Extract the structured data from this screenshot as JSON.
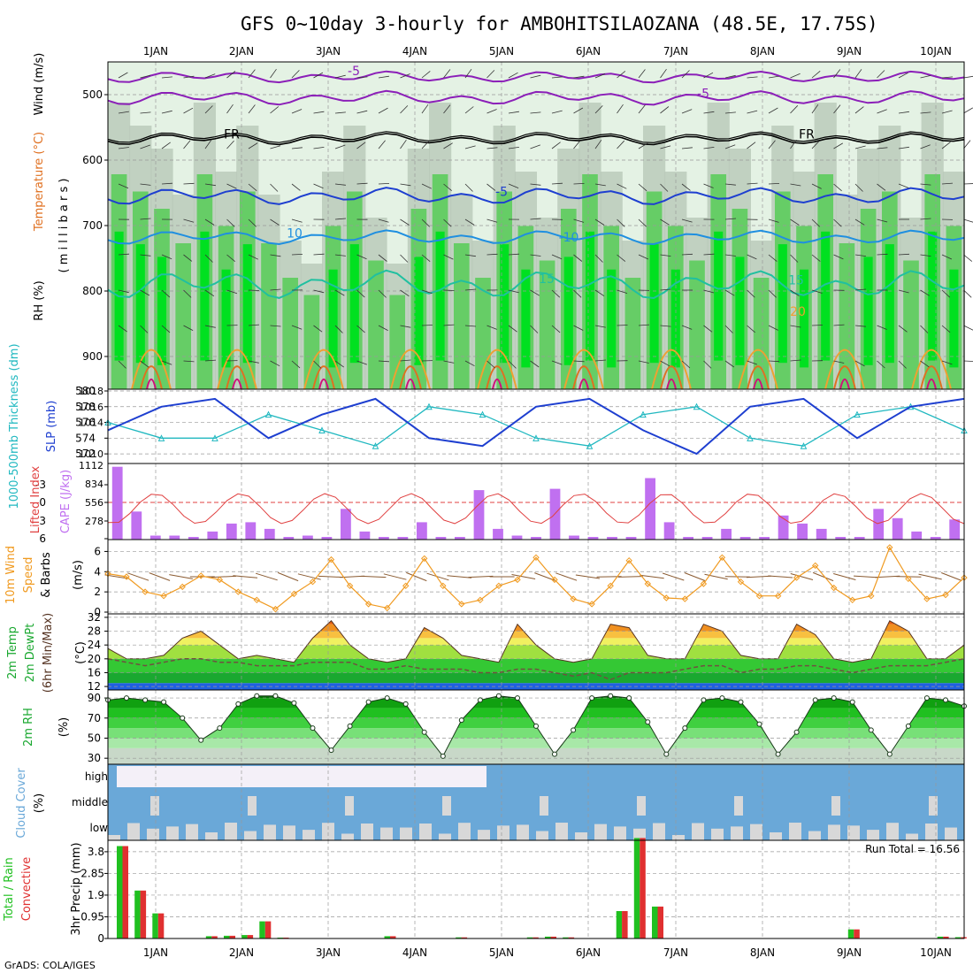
{
  "title": "GFS 0~10day 3-hourly for AMBOHITSILAOZANA (48.5E, 17.75S)",
  "footer": "GrADS: COLA/IGES",
  "colors": {
    "purple": "#8b1fb8",
    "blue_dark": "#1e3fd0",
    "blue_mid": "#1f8fe0",
    "teal": "#20c0a0",
    "orange": "#f0a030",
    "orange_dark": "#e07020",
    "magenta": "#d0107a",
    "green_bright": "#00e020",
    "green_mid": "#5ccc5c",
    "grey_green": "#b8c8b8",
    "pale_green": "#e4f2e4",
    "slp": "#1e3fd0",
    "thickness": "#20b8c0",
    "cape": "#c070f0",
    "lifted": "#e04040",
    "wind": "#f09a20",
    "barb": "#8a5a30",
    "dewpt": "#705040",
    "cloud": "#6aa8d8",
    "cloud_clear": "#f4f0f8",
    "precip_total": "#20c020",
    "precip_conv": "#e03030"
  },
  "chart_data": {
    "type": "line",
    "x_dates": [
      "1JAN",
      "2JAN",
      "3JAN",
      "4JAN",
      "5JAN",
      "6JAN",
      "7JAN",
      "8JAN",
      "9JAN",
      "10JAN"
    ],
    "panels": {
      "upper_air": {
        "ylabel_parts": [
          "RH (%)",
          "Temperature (°C)",
          "Wind (m/s)"
        ],
        "ylabel_units": "( m i l l i b a r s )",
        "yticks": [
          500,
          600,
          700,
          800,
          900
        ],
        "ylim": [
          450,
          950
        ],
        "contour_labels": [
          "-5",
          "-5",
          "FR",
          "FR",
          "-5",
          "10",
          "-10",
          "15",
          "15",
          "20"
        ],
        "levels": {
          "minus5": 505,
          "freezing": 568,
          "t5": 655,
          "t10": 718,
          "t15": 790
        }
      },
      "slp_thickness": {
        "ylabel_left": "1000-500mb Thickness (dm)",
        "ylabel_right": "SLP (mb)",
        "left_ticks": [
          572,
          574,
          576,
          578,
          580
        ],
        "right_ticks": [
          1010,
          1014,
          1016,
          1018
        ],
        "slp": [
          1013,
          1016,
          1017,
          1012,
          1015,
          1017,
          1012,
          1011,
          1016,
          1017,
          1013,
          1010,
          1016,
          1017,
          1012,
          1016,
          1017
        ],
        "thickness": [
          576,
          574,
          574,
          577,
          575,
          573,
          578,
          577,
          574,
          573,
          577,
          578,
          574,
          573,
          577,
          578,
          575
        ]
      },
      "cape_li": {
        "ylabel_left": "Lifted Index",
        "ylabel_right": "CAPE (J/kg)",
        "left_ticks": [
          "-3",
          "0",
          "3",
          "6"
        ],
        "right_ticks": [
          "1112",
          "834",
          "556",
          "278"
        ],
        "cape": [
          1090,
          420,
          60,
          60,
          40,
          120,
          240,
          260,
          160,
          40,
          60,
          40,
          460,
          120,
          40,
          40,
          260,
          40,
          40,
          740,
          160,
          60,
          40,
          760,
          60,
          40,
          40,
          40,
          920,
          260,
          40,
          40,
          160,
          40,
          40,
          360,
          240,
          160,
          40,
          40,
          460,
          320,
          120,
          40,
          300
        ]
      },
      "wind10m": {
        "ylabel": [
          "10m Wind",
          "Speed",
          "& Barbs"
        ],
        "units": "(m/s)",
        "yticks": [
          0,
          2,
          4,
          6
        ],
        "ylim": [
          0,
          7
        ],
        "speed": [
          3.8,
          3.5,
          2.0,
          1.6,
          2.5,
          3.6,
          3.2,
          2.0,
          1.2,
          0.3,
          1.8,
          3.0,
          5.2,
          2.6,
          0.8,
          0.4,
          2.6,
          5.3,
          2.6,
          0.8,
          1.2,
          2.6,
          3.2,
          5.4,
          3.2,
          1.3,
          0.8,
          2.6,
          5.1,
          2.8,
          1.4,
          1.3,
          2.8,
          5.4,
          3.0,
          1.6,
          1.6,
          3.4,
          4.6,
          2.4,
          1.2,
          1.6,
          6.4,
          3.3,
          1.3,
          1.7,
          3.4
        ]
      },
      "temp2m": {
        "ylabel": [
          "2m Temp",
          "2m DewPt",
          "(6hr Min/Max)"
        ],
        "units": "(°C)",
        "yticks": [
          12,
          16,
          20,
          24,
          28,
          32
        ],
        "ylim": [
          11,
          33
        ],
        "temp": [
          23,
          20,
          20,
          21,
          26,
          28,
          24,
          20,
          21,
          20,
          19,
          26,
          31,
          24,
          20,
          19,
          20,
          29,
          26,
          21,
          20,
          19,
          30,
          24,
          20,
          19,
          20,
          30,
          29,
          21,
          20,
          20,
          30,
          28,
          21,
          20,
          20,
          30,
          27,
          20,
          19,
          20,
          31,
          28,
          20,
          20,
          24
        ],
        "dewpt": [
          20,
          19,
          18,
          19,
          20,
          20,
          19,
          19,
          18,
          18,
          18,
          19,
          19,
          19,
          17,
          17,
          18,
          17,
          17,
          17,
          16,
          16,
          17,
          17,
          16,
          15,
          16,
          14,
          16,
          16,
          16,
          17,
          18,
          18,
          16,
          17,
          17,
          18,
          18,
          17,
          16,
          17,
          18,
          18,
          18,
          19,
          20
        ]
      },
      "rh2m": {
        "ylabel": "2m RH",
        "units": "(%)",
        "yticks": [
          30,
          50,
          70,
          90
        ],
        "ylim": [
          24,
          98
        ],
        "rh": [
          88,
          90,
          88,
          86,
          70,
          48,
          60,
          84,
          92,
          92,
          85,
          60,
          38,
          62,
          86,
          90,
          84,
          56,
          32,
          68,
          88,
          92,
          90,
          62,
          34,
          58,
          90,
          92,
          90,
          66,
          34,
          60,
          88,
          90,
          86,
          64,
          34,
          56,
          88,
          90,
          86,
          58,
          34,
          62,
          90,
          88,
          82
        ]
      },
      "cloud": {
        "ylabel": [
          "Cloud Cover",
          "(%)"
        ],
        "levels": [
          "high",
          "middle",
          "low"
        ]
      },
      "precip": {
        "ylabel": [
          "Total / Rain",
          "Convective"
        ],
        "units": "3hr Precip (mm)",
        "yticks": [
          "0",
          "0.95",
          "1.9",
          "2.85",
          "3.8"
        ],
        "ylim": [
          0,
          4.3
        ],
        "run_total": "Run Total = 16.56",
        "bars": [
          4.05,
          2.1,
          1.1,
          0,
          0,
          0.1,
          0.12,
          0.15,
          0.75,
          0.04,
          0,
          0,
          0,
          0,
          0,
          0.1,
          0,
          0,
          0,
          0.05,
          0,
          0,
          0,
          0.05,
          0.08,
          0.05,
          0,
          0,
          1.2,
          4.4,
          1.4,
          0,
          0,
          0,
          0,
          0,
          0,
          0,
          0,
          0,
          0,
          0.4,
          0,
          0,
          0,
          0,
          0.08,
          0.06
        ]
      }
    }
  }
}
